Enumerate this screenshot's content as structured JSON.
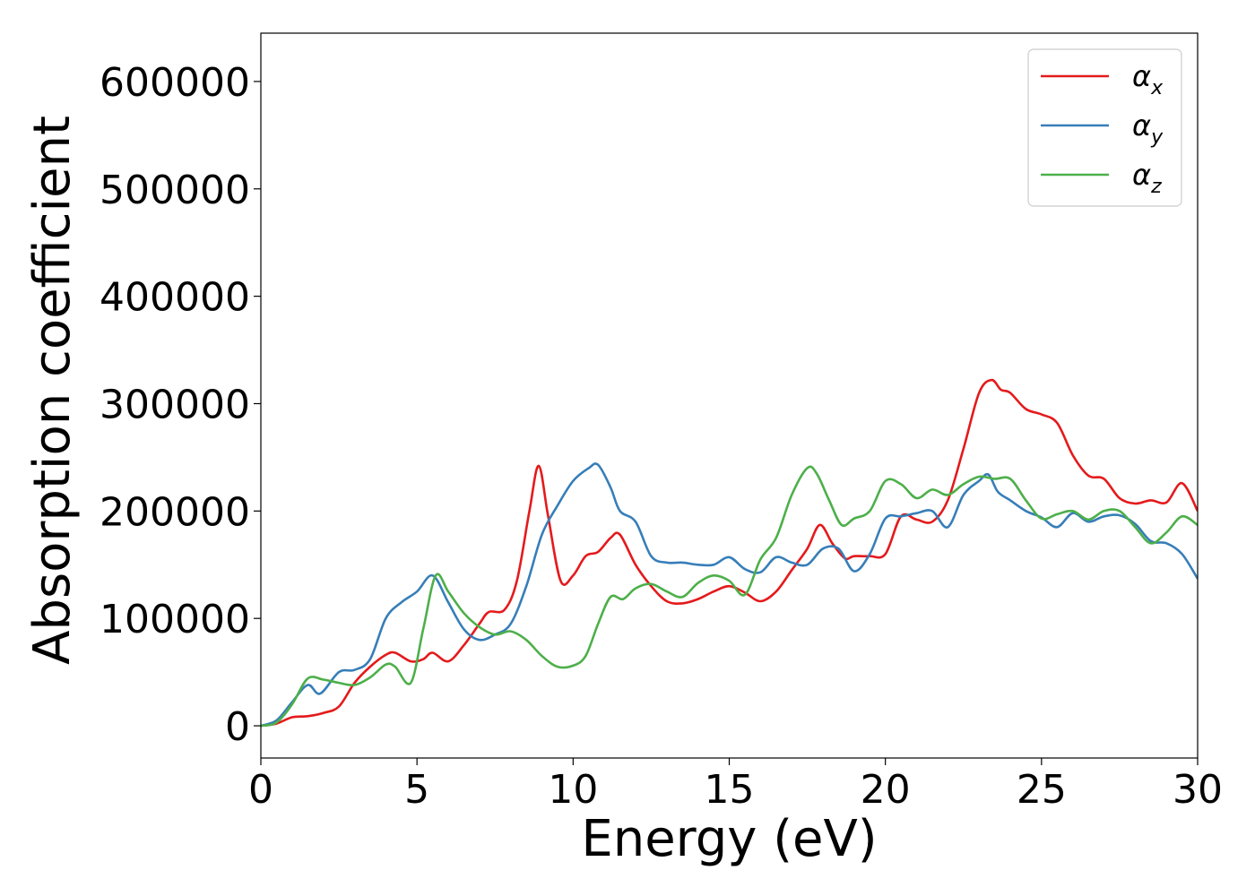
{
  "chart_data": {
    "type": "line",
    "xlabel": "Energy (eV)",
    "ylabel": "Absorption coefficient",
    "xlim": [
      0,
      30
    ],
    "ylim": [
      -30000,
      645000
    ],
    "xticks": [
      0,
      5,
      10,
      15,
      20,
      25,
      30
    ],
    "xtick_labels": [
      "0",
      "5",
      "10",
      "15",
      "20",
      "25",
      "30"
    ],
    "yticks": [
      0,
      100000,
      200000,
      300000,
      400000,
      500000,
      600000
    ],
    "ytick_labels": [
      "0",
      "100000",
      "200000",
      "300000",
      "400000",
      "500000",
      "600000"
    ],
    "grid": false,
    "legend_position": "top-right",
    "series": [
      {
        "name": "α",
        "subscript": "x",
        "color": "#e41a1c",
        "x": [
          0,
          0.5,
          1,
          1.5,
          2,
          2.5,
          3,
          3.5,
          4,
          4.3,
          4.8,
          5.2,
          5.5,
          6,
          6.5,
          7,
          7.3,
          7.8,
          8.2,
          8.6,
          8.9,
          9.2,
          9.6,
          10,
          10.4,
          10.8,
          11.2,
          11.5,
          12,
          12.5,
          13,
          13.5,
          14,
          14.5,
          15,
          15.5,
          16,
          16.5,
          17,
          17.5,
          17.9,
          18.3,
          18.7,
          19,
          19.5,
          20,
          20.5,
          21,
          21.5,
          22,
          22.5,
          23,
          23.4,
          23.7,
          24,
          24.5,
          25,
          25.5,
          26,
          26.5,
          27,
          27.5,
          28,
          28.5,
          29,
          29.5,
          30
        ],
        "y": [
          0,
          2000,
          8000,
          9000,
          12000,
          18000,
          40000,
          55000,
          66000,
          68000,
          60000,
          62000,
          68000,
          60000,
          75000,
          95000,
          106000,
          108000,
          135000,
          200000,
          242000,
          195000,
          135000,
          140000,
          158000,
          162000,
          175000,
          178000,
          150000,
          130000,
          116000,
          114000,
          118000,
          125000,
          130000,
          124000,
          116000,
          125000,
          145000,
          165000,
          187000,
          170000,
          156000,
          158000,
          158000,
          160000,
          195000,
          192000,
          190000,
          210000,
          258000,
          310000,
          322000,
          313000,
          310000,
          295000,
          290000,
          282000,
          252000,
          233000,
          230000,
          212000,
          207000,
          210000,
          208000,
          226000,
          200000
        ]
      },
      {
        "name": "α",
        "subscript": "y",
        "color": "#377eb8",
        "x": [
          0,
          0.5,
          1,
          1.5,
          1.9,
          2.5,
          3,
          3.5,
          4,
          4.5,
          5,
          5.5,
          6,
          6.5,
          7,
          7.5,
          8,
          8.5,
          9,
          9.5,
          10,
          10.5,
          10.8,
          11.2,
          11.5,
          12,
          12.5,
          13,
          13.5,
          14,
          14.5,
          15,
          15.5,
          16,
          16.5,
          17,
          17.5,
          18,
          18.5,
          19,
          19.5,
          20,
          20.5,
          21,
          21.5,
          22,
          22.5,
          23,
          23.3,
          23.6,
          24,
          24.5,
          25,
          25.5,
          26,
          26.5,
          27,
          27.5,
          28,
          28.5,
          29,
          29.5,
          30
        ],
        "y": [
          0,
          5000,
          22000,
          38000,
          30000,
          50000,
          52000,
          62000,
          100000,
          115000,
          125000,
          140000,
          115000,
          90000,
          80000,
          85000,
          95000,
          130000,
          178000,
          205000,
          228000,
          240000,
          243000,
          222000,
          200000,
          190000,
          158000,
          152000,
          152000,
          150000,
          150000,
          157000,
          146000,
          143000,
          157000,
          152000,
          150000,
          165000,
          165000,
          144000,
          160000,
          193000,
          195000,
          198000,
          200000,
          185000,
          215000,
          228000,
          234000,
          218000,
          210000,
          200000,
          194000,
          185000,
          198000,
          190000,
          195000,
          196000,
          188000,
          172000,
          170000,
          160000,
          137000
        ]
      },
      {
        "name": "α",
        "subscript": "z",
        "color": "#4daf4a",
        "x": [
          0,
          0.5,
          1,
          1.5,
          2,
          2.5,
          3,
          3.5,
          4,
          4.3,
          4.8,
          5.2,
          5.6,
          6,
          6.5,
          7,
          7.5,
          8,
          8.5,
          9,
          9.5,
          10,
          10.4,
          10.8,
          11.2,
          11.6,
          12,
          12.5,
          13,
          13.5,
          14,
          14.5,
          15,
          15.5,
          16,
          16.5,
          17,
          17.5,
          17.8,
          18.2,
          18.6,
          19,
          19.5,
          20,
          20.5,
          21,
          21.5,
          22,
          22.5,
          23,
          23.5,
          24,
          24.5,
          25,
          25.5,
          26,
          26.5,
          27,
          27.5,
          28,
          28.5,
          29,
          29.5,
          30
        ],
        "y": [
          0,
          3000,
          20000,
          44000,
          43000,
          40000,
          38000,
          45000,
          57000,
          55000,
          40000,
          90000,
          140000,
          125000,
          105000,
          92000,
          85000,
          88000,
          80000,
          65000,
          55000,
          56000,
          65000,
          95000,
          120000,
          118000,
          128000,
          132000,
          125000,
          120000,
          133000,
          140000,
          135000,
          122000,
          155000,
          175000,
          215000,
          240000,
          235000,
          210000,
          187000,
          193000,
          200000,
          228000,
          225000,
          212000,
          220000,
          215000,
          225000,
          232000,
          230000,
          230000,
          210000,
          193000,
          197000,
          200000,
          192000,
          200000,
          200000,
          185000,
          170000,
          180000,
          195000,
          187000
        ]
      }
    ]
  }
}
